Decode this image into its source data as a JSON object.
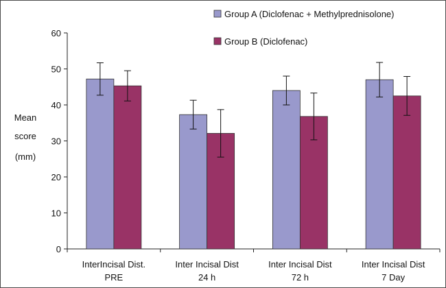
{
  "chart_data": {
    "type": "bar",
    "title": "",
    "xlabel": "",
    "ylabel_lines": [
      "Mean",
      "score",
      "(mm)"
    ],
    "ylim": [
      0,
      60
    ],
    "yticks": [
      0,
      10,
      20,
      30,
      40,
      50,
      60
    ],
    "grid": false,
    "legend_placement": "top-right",
    "categories": [
      [
        "InterIncisal Dist.",
        "PRE"
      ],
      [
        "Inter Incisal Dist",
        "24 h"
      ],
      [
        "Inter Incisal Dist",
        "72 h"
      ],
      [
        "Inter Incisal Dist",
        "7 Day"
      ]
    ],
    "series": [
      {
        "name": "Group A (Diclofenac + Methylprednisolone)",
        "color": "#9999cc",
        "values": [
          47.2,
          37.3,
          44.0,
          47.0
        ],
        "error": [
          4.5,
          4.0,
          4.0,
          4.8
        ]
      },
      {
        "name": "Group B (Diclofenac)",
        "color": "#993366",
        "values": [
          45.3,
          32.1,
          36.8,
          42.5
        ],
        "error": [
          4.2,
          6.6,
          6.5,
          5.4
        ]
      }
    ]
  }
}
